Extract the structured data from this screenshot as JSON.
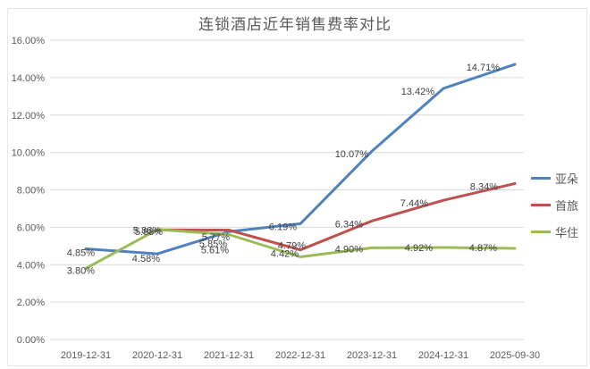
{
  "chart_data": {
    "type": "line",
    "title": "连锁酒店近年销售费率对比",
    "categories": [
      "2019-12-31",
      "2020-12-31",
      "2021-12-31",
      "2022-12-31",
      "2023-12-31",
      "2024-12-31",
      "2025-09-30"
    ],
    "y_axis": {
      "min": 0,
      "max": 16,
      "step": 2
    },
    "y_tick_labels": [
      "0.00%",
      "2.00%",
      "4.00%",
      "6.00%",
      "8.00%",
      "10.00%",
      "12.00%",
      "14.00%",
      "16.00%"
    ],
    "grid": true,
    "legend_position": "right",
    "colors": {
      "grid": "#d9d9d9",
      "tick_text": "#595959",
      "data_label_text": "#3f3f3f"
    },
    "series": [
      {
        "name": "亚朵",
        "color": "#4F81BD",
        "values": [
          4.85,
          4.58,
          5.77,
          6.19,
          10.07,
          13.42,
          14.71
        ],
        "labels": [
          "4.85%",
          "4.58%",
          "5.77%",
          "6.19%",
          "10.07%",
          "13.42%",
          "14.71%"
        ],
        "label_offsets": [
          [
            10,
            8
          ],
          [
            3,
            9
          ],
          [
            1,
            10
          ],
          [
            -4,
            7
          ],
          [
            -4,
            7
          ],
          [
            -10,
            7
          ],
          [
            -17,
            7
          ]
        ]
      },
      {
        "name": "首旅",
        "color": "#C0504D",
        "values": [
          null,
          5.86,
          5.85,
          4.79,
          6.34,
          7.44,
          8.34
        ],
        "labels": [
          null,
          "5.86%",
          "5.85%",
          "4.79%",
          "6.34%",
          "7.44%",
          "8.34%"
        ],
        "label_offsets": [
          null,
          [
            4,
            4
          ],
          [
            -2,
            19
          ],
          [
            6,
            -1
          ],
          [
            -10,
            7
          ],
          [
            -17,
            7
          ],
          [
            -19,
            7
          ]
        ]
      },
      {
        "name": "华住",
        "color": "#9BBB59",
        "values": [
          3.8,
          5.88,
          5.61,
          4.42,
          4.9,
          4.92,
          4.87
        ],
        "labels": [
          "3.80%",
          "5.88%",
          "5.61%",
          "4.42%",
          "4.90%",
          "4.92%",
          "4.87%"
        ],
        "label_offsets": [
          [
            10,
            6
          ],
          [
            6,
            6
          ],
          [
            0,
            21
          ],
          [
            -2,
            0
          ],
          [
            -10,
            5
          ],
          [
            -12,
            4
          ],
          [
            -20,
            3
          ]
        ]
      }
    ]
  }
}
